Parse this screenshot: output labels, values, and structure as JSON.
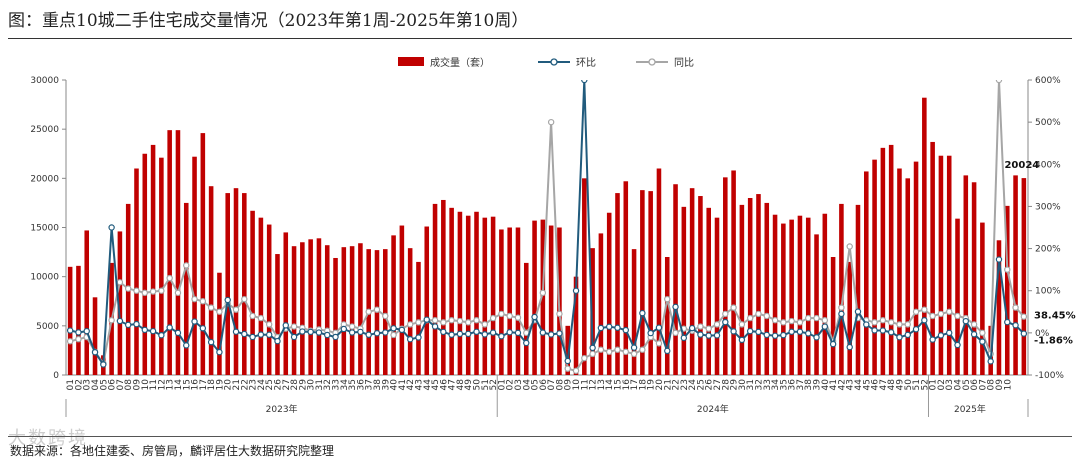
{
  "title": "图：重点10城二手住宅成交量情况（2023年第1周-2025年第10周）",
  "source": "数据来源：各地住建委、房管局，麟评居住大数据研究院整理",
  "watermark": "大数跨境",
  "chart_data": {
    "type": "bar+line",
    "y_left": {
      "min": 0,
      "max": 30000,
      "ticks": [
        0,
        5000,
        10000,
        15000,
        20000,
        25000,
        30000
      ]
    },
    "y_right": {
      "min": -100,
      "max": 600,
      "ticks": [
        "-100%",
        "0%",
        "100%",
        "200%",
        "300%",
        "400%",
        "500%",
        "600%"
      ],
      "tick_values": [
        -100,
        0,
        100,
        200,
        300,
        400,
        500,
        600
      ]
    },
    "legend": {
      "position": "top-center",
      "items": [
        "成交量（套）",
        "环比",
        "同比"
      ]
    },
    "colors": {
      "bar": "#c00000",
      "mom": "#215b7d",
      "yoy": "#a6a6a6"
    },
    "years": [
      {
        "label": "2023年",
        "weeks": 52
      },
      {
        "label": "2024年",
        "weeks": 52
      },
      {
        "label": "2025年",
        "weeks": 10
      }
    ],
    "annotations": [
      {
        "text": "20024",
        "series": "volume",
        "index": 113
      },
      {
        "text": "38.45%",
        "series": "yoy_label"
      },
      {
        "text": "-1.86%",
        "series": "mom_label"
      }
    ],
    "volume": [
      11000,
      11100,
      14700,
      7900,
      2000,
      11400,
      14600,
      17400,
      21000,
      22500,
      23400,
      22100,
      24900,
      24900,
      17500,
      22200,
      24600,
      19200,
      10400,
      18500,
      19000,
      18500,
      16700,
      16000,
      15300,
      12300,
      14500,
      13100,
      13500,
      13800,
      13900,
      13200,
      11900,
      13000,
      13100,
      13400,
      12800,
      12700,
      12800,
      14200,
      15200,
      12900,
      11500,
      15100,
      17400,
      17800,
      17000,
      16600,
      16200,
      16600,
      16000,
      16100,
      14800,
      15000,
      15000,
      11400,
      15700,
      15800,
      15200,
      15000,
      5000,
      10000,
      20000,
      12900,
      14400,
      16500,
      18500,
      19700,
      12800,
      18800,
      18700,
      21000,
      12000,
      19400,
      17100,
      19000,
      18200,
      17000,
      16000,
      20100,
      20800,
      17300,
      18000,
      18400,
      17500,
      16300,
      15400,
      15800,
      16200,
      16000,
      14300,
      16400,
      12000,
      17400,
      11500,
      17300,
      20700,
      21900,
      23100,
      23400,
      21000,
      20000,
      21700,
      28200,
      23700,
      22300,
      22300,
      15900,
      20300,
      19600,
      15500,
      5000,
      13700,
      17200,
      20300,
      20024
    ],
    "mom": [
      5.5,
      1.0,
      4.0,
      -46,
      -75,
      250,
      28.0,
      19.0,
      20.7,
      7.1,
      4.0,
      -5.6,
      12.7,
      0.0,
      -29.7,
      26.9,
      10.8,
      -22.0,
      -45.8,
      77.9,
      2.7,
      -2.6,
      -9.7,
      -4.2,
      -4.4,
      -19.6,
      17.9,
      -9.7,
      3.1,
      2.2,
      0.7,
      -5.0,
      -9.8,
      9.2,
      0.8,
      2.3,
      -4.5,
      -0.8,
      0.8,
      10.9,
      7.0,
      -15.1,
      -10.9,
      31.3,
      15.2,
      2.3,
      -4.5,
      -2.4,
      -2.4,
      2.5,
      -3.6,
      0.6,
      -8.1,
      1.4,
      0.0,
      -24.0,
      37.7,
      0.6,
      -3.8,
      -1.3,
      -66.7,
      100.0,
      600.0,
      -35.5,
      11.6,
      14.6,
      12.1,
      6.5,
      -35.0,
      46.9,
      -0.5,
      12.3,
      -42.9,
      61.7,
      -11.9,
      11.1,
      -4.2,
      -6.6,
      -5.9,
      25.6,
      3.5,
      -16.8,
      4.0,
      2.2,
      -4.9,
      -6.9,
      -5.5,
      2.6,
      2.5,
      -1.2,
      -10.6,
      14.7,
      -26.8,
      45.0,
      -33.9,
      50.4,
      19.7,
      5.8,
      5.5,
      1.3,
      -10.3,
      -4.8,
      8.5,
      30.0,
      -16.0,
      -5.9,
      0.0,
      -28.7,
      27.7,
      -3.4,
      -20.9,
      -67.7,
      174.0,
      25.5,
      18.0,
      -1.86
    ],
    "yoy": [
      -20,
      -15,
      -10,
      -45,
      -72,
      30,
      120,
      105,
      100,
      95,
      98,
      100,
      130,
      95,
      160,
      80,
      75,
      60,
      50,
      70,
      55,
      80,
      40,
      35,
      20,
      -10,
      10,
      15,
      12,
      5,
      8,
      5,
      0,
      20,
      15,
      10,
      50,
      55,
      40,
      -5,
      10,
      20,
      25,
      30,
      30,
      25,
      30,
      28,
      25,
      30,
      20,
      35,
      45,
      40,
      36,
      0,
      30,
      95,
      500,
      45,
      -85,
      -90,
      -60,
      -50,
      -40,
      -45,
      -40,
      -45,
      -50,
      -40,
      -10,
      -25,
      80,
      0,
      10,
      5,
      15,
      10,
      20,
      45,
      60,
      20,
      35,
      45,
      40,
      30,
      25,
      28,
      25,
      35,
      35,
      30,
      -20,
      60,
      205,
      35,
      30,
      25,
      30,
      25,
      20,
      20,
      50,
      55,
      40,
      45,
      50,
      40,
      35,
      20,
      0,
      -50,
      600,
      150,
      60,
      38.45
    ]
  }
}
